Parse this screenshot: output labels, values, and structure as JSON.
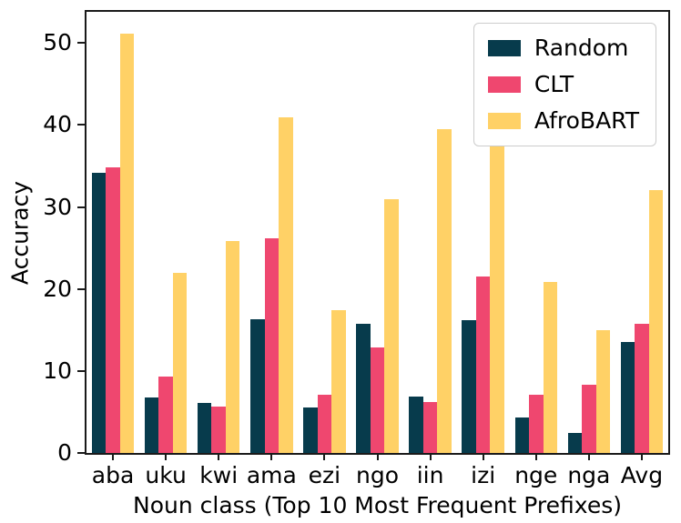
{
  "chart_data": {
    "type": "bar",
    "title": "",
    "xlabel": "Noun class (Top 10 Most Frequent Prefixes)",
    "ylabel": "Accuracy",
    "categories": [
      "aba",
      "uku",
      "kwi",
      "ama",
      "ezi",
      "ngo",
      "iin",
      "izi",
      "nge",
      "nga",
      "Avg"
    ],
    "series": [
      {
        "name": "Random",
        "color": "#073b4c",
        "values": [
          34.2,
          6.8,
          6.1,
          16.3,
          5.5,
          15.8,
          6.9,
          16.2,
          4.3,
          2.4,
          13.5
        ]
      },
      {
        "name": "CLT",
        "color": "#ef476f",
        "values": [
          34.8,
          9.3,
          5.7,
          26.2,
          7.1,
          12.9,
          6.2,
          21.5,
          7.1,
          8.3,
          15.8
        ]
      },
      {
        "name": "AfroBART",
        "color": "#ffd166",
        "values": [
          51.1,
          22.0,
          25.9,
          40.9,
          17.4,
          30.9,
          39.5,
          38.2,
          20.9,
          15.0,
          32.1
        ]
      }
    ],
    "yticks": [
      0,
      10,
      20,
      30,
      40,
      50
    ],
    "ylim": [
      0,
      53.8
    ],
    "grid": false,
    "legend_position": "upper right",
    "bar_group_fraction": 0.8,
    "axis_color": "#1a1a1a",
    "background_color": "#ffffff"
  }
}
